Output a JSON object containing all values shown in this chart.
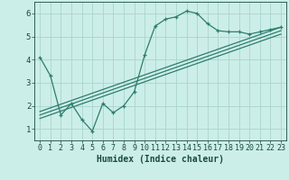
{
  "title": "",
  "xlabel": "Humidex (Indice chaleur)",
  "bg_color": "#cceee8",
  "line_color": "#2e7d6e",
  "grid_color": "#aad4ce",
  "xlim": [
    -0.5,
    23.5
  ],
  "ylim": [
    0.5,
    6.5
  ],
  "yticks": [
    1,
    2,
    3,
    4,
    5,
    6
  ],
  "xticks": [
    0,
    1,
    2,
    3,
    4,
    5,
    6,
    7,
    8,
    9,
    10,
    11,
    12,
    13,
    14,
    15,
    16,
    17,
    18,
    19,
    20,
    21,
    22,
    23
  ],
  "main_line_x": [
    0,
    1,
    2,
    3,
    4,
    5,
    6,
    7,
    8,
    9,
    10,
    11,
    12,
    13,
    14,
    15,
    16,
    17,
    18,
    19,
    20,
    21,
    22,
    23
  ],
  "main_line_y": [
    4.1,
    3.3,
    1.6,
    2.1,
    1.4,
    0.9,
    2.1,
    1.7,
    2.0,
    2.6,
    4.2,
    5.45,
    5.75,
    5.85,
    6.1,
    6.0,
    5.55,
    5.25,
    5.2,
    5.2,
    5.1,
    5.2,
    5.3,
    5.4
  ],
  "reg_lines": [
    {
      "x": [
        0,
        23
      ],
      "y": [
        1.45,
        5.1
      ]
    },
    {
      "x": [
        0,
        23
      ],
      "y": [
        1.6,
        5.25
      ]
    },
    {
      "x": [
        0,
        23
      ],
      "y": [
        1.75,
        5.4
      ]
    }
  ],
  "xlabel_fontsize": 7,
  "tick_fontsize": 6
}
